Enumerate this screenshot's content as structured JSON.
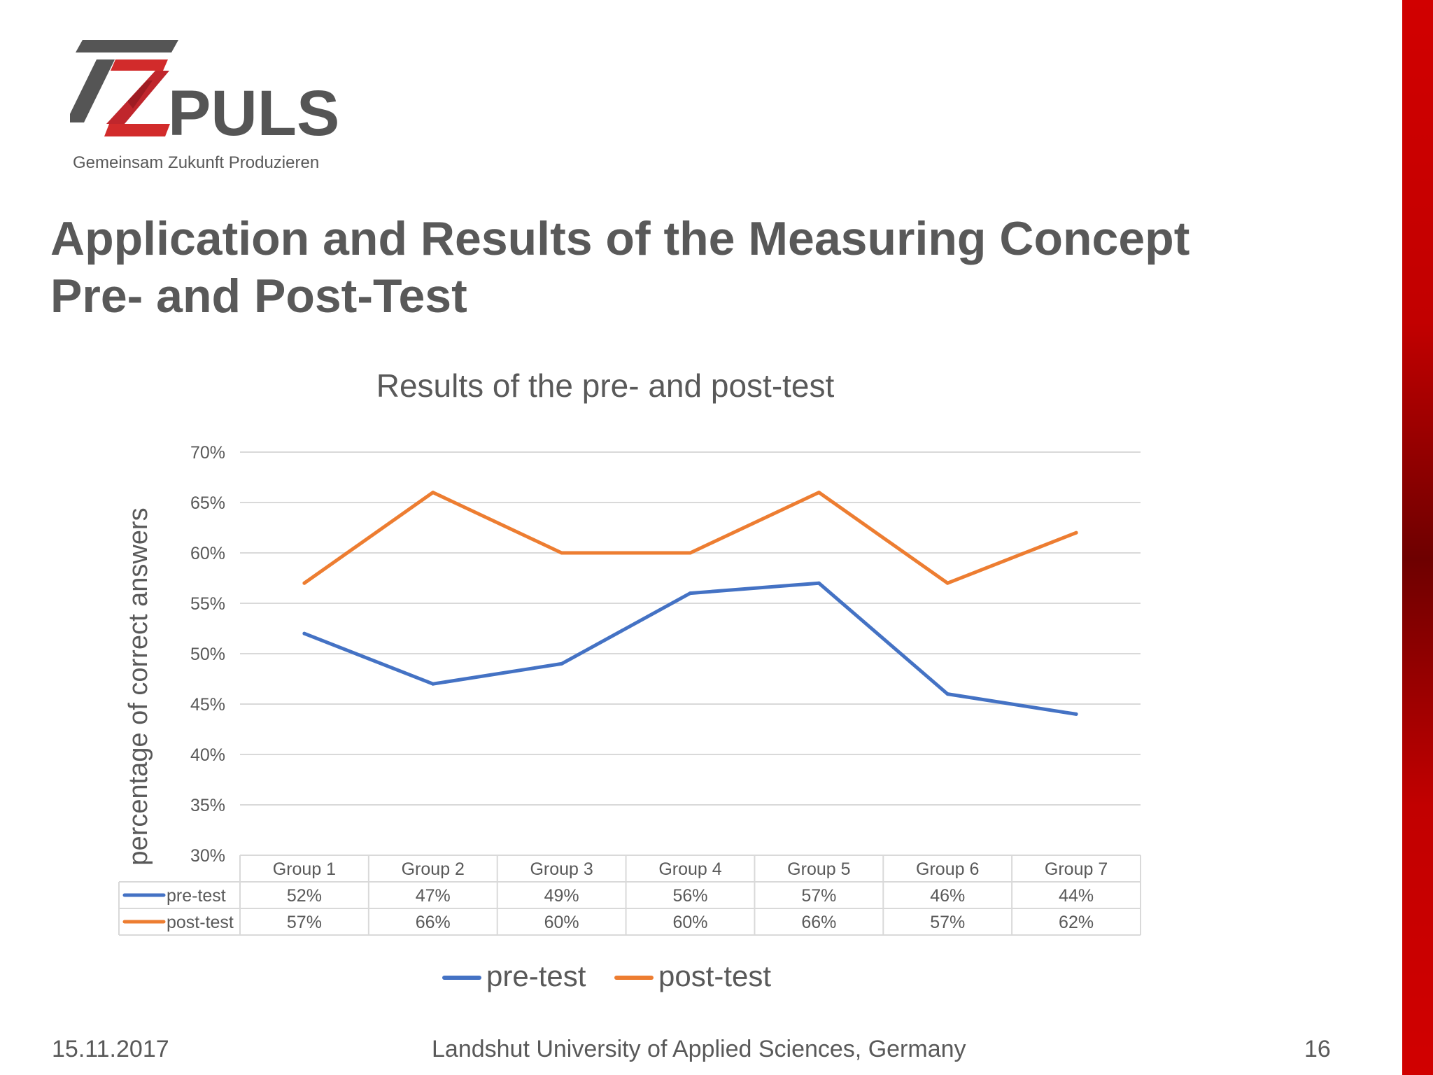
{
  "logo": {
    "wordmark": "PULS",
    "tagline": "Gemeinsam Zukunft Produzieren"
  },
  "slide": {
    "title_line1": "Application and Results of the Measuring Concept",
    "title_line2": "Pre- and Post-Test"
  },
  "chart_data": {
    "type": "line",
    "title": "Results of the pre- and post-test",
    "xlabel": "",
    "ylabel": "percentage of correct answers",
    "categories": [
      "Group 1",
      "Group 2",
      "Group 3",
      "Group 4",
      "Group 5",
      "Group 6",
      "Group 7"
    ],
    "yticks": [
      "30%",
      "35%",
      "40%",
      "45%",
      "50%",
      "55%",
      "60%",
      "65%",
      "70%"
    ],
    "ylim": [
      30,
      70
    ],
    "grid": true,
    "legend": "bottom",
    "data_table": true,
    "series": [
      {
        "name": "pre-test",
        "color": "#4472c4",
        "values": [
          52,
          47,
          49,
          56,
          57,
          46,
          44
        ],
        "labels": [
          "52%",
          "47%",
          "49%",
          "56%",
          "57%",
          "46%",
          "44%"
        ]
      },
      {
        "name": "post-test",
        "color": "#ed7d31",
        "values": [
          57,
          66,
          60,
          60,
          66,
          57,
          62
        ],
        "labels": [
          "57%",
          "66%",
          "60%",
          "60%",
          "66%",
          "57%",
          "62%"
        ]
      }
    ]
  },
  "footer": {
    "date": "15.11.2017",
    "institution": "Landshut University of Applied Sciences, Germany",
    "page": "16"
  },
  "colors": {
    "accent_red": "#c00000",
    "logo_red": "#d22b2b",
    "logo_gray": "#555555",
    "text": "#595959"
  }
}
